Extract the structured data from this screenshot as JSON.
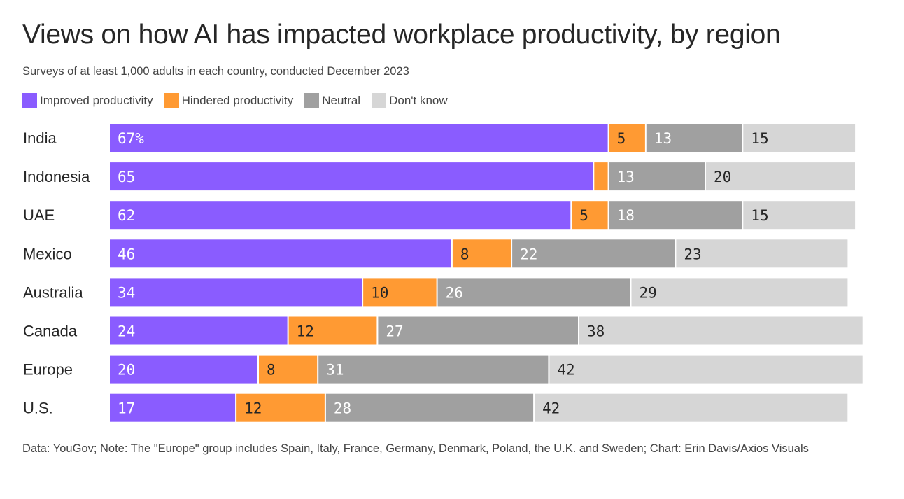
{
  "title": "Views on how AI has impacted workplace productivity, by region",
  "subtitle": "Surveys of at least 1,000 adults in each country, conducted December 2023",
  "footnote": "Data: YouGov; Note: The \"Europe\" group includes Spain, Italy, France, Germany, Denmark, Poland, the U.K. and Sweden; Chart: Erin Davis/Axios Visuals",
  "colors": {
    "improved": "#8a5cff",
    "hindered": "#ff9a33",
    "neutral": "#a0a0a0",
    "dont_know": "#d6d6d6",
    "label_light": "#ffffff",
    "label_dark": "#262626"
  },
  "legend": [
    {
      "label": "Improved productivity",
      "color": "#8a5cff"
    },
    {
      "label": "Hindered productivity",
      "color": "#ff9a33"
    },
    {
      "label": "Neutral",
      "color": "#a0a0a0"
    },
    {
      "label": "Don't know",
      "color": "#d6d6d6"
    }
  ],
  "chart_data": {
    "type": "bar",
    "orientation": "horizontal",
    "stacked": true,
    "title": "Views on how AI has impacted workplace productivity, by region",
    "subtitle": "Surveys of at least 1,000 adults in each country, conducted December 2023",
    "unit": "%",
    "categories": [
      "India",
      "Indonesia",
      "UAE",
      "Mexico",
      "Australia",
      "Canada",
      "Europe",
      "U.S."
    ],
    "series": [
      {
        "name": "Improved productivity",
        "color": "#8a5cff",
        "values": [
          67,
          65,
          62,
          46,
          34,
          24,
          20,
          17
        ],
        "labels": [
          "67%",
          "65",
          "62",
          "46",
          "34",
          "24",
          "20",
          "17"
        ]
      },
      {
        "name": "Hindered productivity",
        "color": "#ff9a33",
        "values": [
          5,
          2,
          5,
          8,
          10,
          12,
          8,
          12
        ],
        "labels": [
          "5",
          "",
          "5",
          "8",
          "10",
          "12",
          "8",
          "12"
        ]
      },
      {
        "name": "Neutral",
        "color": "#a0a0a0",
        "values": [
          13,
          13,
          18,
          22,
          26,
          27,
          31,
          28
        ],
        "labels": [
          "13",
          "13",
          "18",
          "22",
          "26",
          "27",
          "31",
          "28"
        ]
      },
      {
        "name": "Don't know",
        "color": "#d6d6d6",
        "values": [
          15,
          20,
          15,
          23,
          29,
          38,
          42,
          42
        ],
        "labels": [
          "15",
          "20",
          "15",
          "23",
          "29",
          "38",
          "42",
          "42"
        ]
      }
    ],
    "legend_position": "top-left",
    "grid": false
  }
}
